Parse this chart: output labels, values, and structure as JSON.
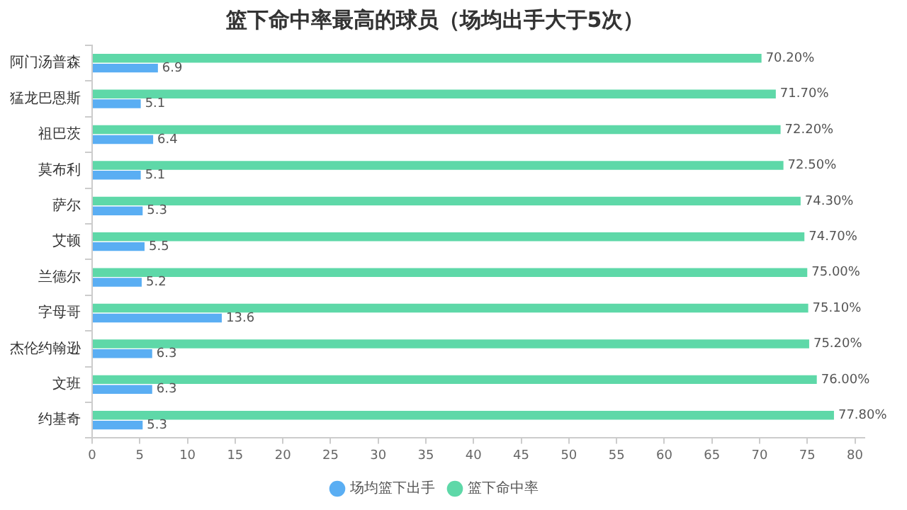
{
  "chart_data": {
    "type": "bar",
    "orientation": "horizontal",
    "title": "篮下命中率最高的球员（场均出手大于5次）",
    "categories": [
      "阿门汤普森",
      "猛龙巴恩斯",
      "祖巴茨",
      "莫布利",
      "萨尔",
      "艾顿",
      "兰德尔",
      "字母哥",
      "杰伦约翰逊",
      "文班",
      "约基奇"
    ],
    "series": [
      {
        "name": "篮下命中率",
        "color": "#5ed8a8",
        "values": [
          70.2,
          71.7,
          72.2,
          72.5,
          74.3,
          74.7,
          75.0,
          75.1,
          75.2,
          76.0,
          77.8
        ],
        "value_labels": [
          "70.20%",
          "71.70%",
          "72.20%",
          "72.50%",
          "74.30%",
          "74.70%",
          "75.00%",
          "75.10%",
          "75.20%",
          "76.00%",
          "77.80%"
        ]
      },
      {
        "name": "场均篮下出手",
        "color": "#5aaef3",
        "values": [
          6.9,
          5.1,
          6.4,
          5.1,
          5.3,
          5.5,
          5.2,
          13.6,
          6.3,
          6.3,
          5.3
        ],
        "value_labels": [
          "6.9",
          "5.1",
          "6.4",
          "5.1",
          "5.3",
          "5.5",
          "5.2",
          "13.6",
          "6.3",
          "6.3",
          "5.3"
        ]
      }
    ],
    "xlim": [
      0,
      81
    ],
    "xticks": [
      0,
      5,
      10,
      15,
      20,
      25,
      30,
      35,
      40,
      45,
      50,
      55,
      60,
      65,
      70,
      75,
      80
    ],
    "grid": false,
    "legend": "bottom"
  }
}
